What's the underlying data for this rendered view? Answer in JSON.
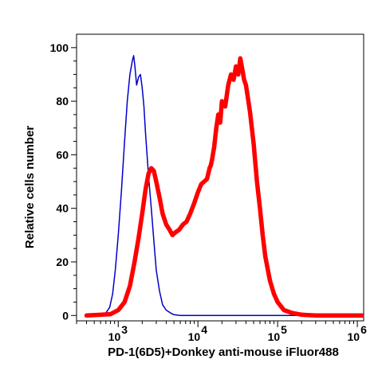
{
  "chart_data": {
    "type": "line",
    "title": "",
    "xlabel": "PD-1(6D5)+Donkey anti-mouse iFluor488",
    "ylabel": "Relative cells number",
    "x_scale": "log",
    "xlim": [
      300,
      1200000
    ],
    "ylim": [
      -2,
      105
    ],
    "x_ticks": [
      {
        "value": 1000,
        "base": "10",
        "exp": "3"
      },
      {
        "value": 10000,
        "base": "10",
        "exp": "4"
      },
      {
        "value": 100000,
        "base": "10",
        "exp": "5"
      },
      {
        "value": 1000000,
        "base": "10",
        "exp": "6"
      }
    ],
    "y_ticks": [
      0,
      20,
      40,
      60,
      80,
      100
    ],
    "grid": false,
    "series": [
      {
        "color": "#0000cc",
        "stroke_width": 1.5,
        "x": [
          400,
          600,
          700,
          780,
          850,
          920,
          1000,
          1100,
          1200,
          1300,
          1400,
          1500,
          1560,
          1620,
          1700,
          1800,
          1900,
          2000,
          2100,
          2200,
          2400,
          2600,
          2800,
          3000,
          3300,
          3600,
          4000,
          4500,
          5000,
          6000,
          10000,
          100000,
          1200000
        ],
        "y": [
          0,
          0,
          1,
          3,
          8,
          17,
          30,
          47,
          65,
          80,
          90,
          95,
          97,
          93,
          86,
          89,
          90,
          85,
          78,
          68,
          52,
          40,
          28,
          17,
          9,
          4,
          2,
          1,
          0.3,
          0,
          0,
          0,
          0
        ]
      },
      {
        "color": "#ff0000",
        "stroke_width": 5.5,
        "x": [
          400,
          800,
          1000,
          1200,
          1400,
          1600,
          1800,
          2000,
          2200,
          2400,
          2600,
          2800,
          3000,
          3300,
          3600,
          4000,
          4400,
          4800,
          5200,
          5800,
          6500,
          7200,
          8000,
          9000,
          10000,
          11000,
          12000,
          13000,
          14000,
          14500,
          15000,
          16000,
          17000,
          18000,
          19000,
          20000,
          22000,
          24000,
          26000,
          28000,
          30000,
          32000,
          34000,
          36000,
          38000,
          40000,
          42000,
          45000,
          50000,
          55000,
          60000,
          65000,
          70000,
          80000,
          90000,
          100000,
          120000,
          150000,
          200000,
          300000,
          1200000
        ],
        "y": [
          0,
          0.5,
          2,
          5,
          11,
          20,
          29,
          38,
          47,
          53,
          55,
          54,
          50,
          44,
          38,
          34,
          32,
          30,
          31,
          32,
          34,
          35,
          38,
          42,
          46,
          49,
          50,
          51,
          55,
          56,
          58,
          63,
          70,
          75,
          72,
          80,
          78,
          86,
          90,
          88,
          93,
          90,
          96,
          92,
          88,
          86,
          82,
          76,
          64,
          50,
          40,
          30,
          22,
          13,
          8,
          5,
          2,
          1,
          0.3,
          0,
          0
        ]
      }
    ]
  }
}
